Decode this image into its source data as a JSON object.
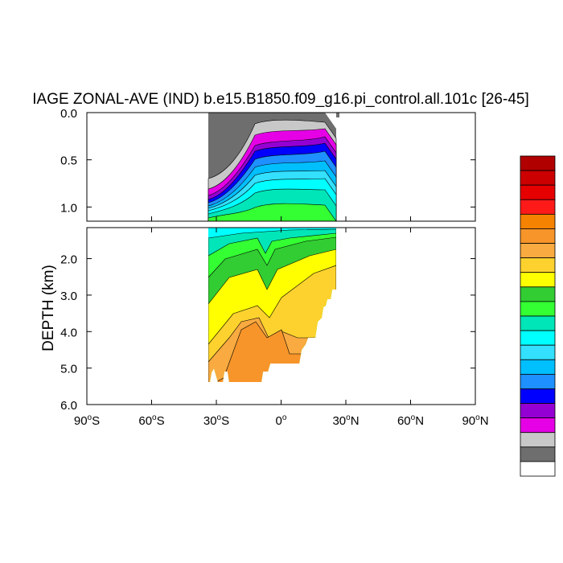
{
  "chart_data": {
    "type": "contour",
    "title": "IAGE ZONAL-AVE (IND) b.e15.B1850.f09_g16.pi_control.all.101c [26-45]",
    "ylabel": "DEPTH (km)",
    "xlabel": "",
    "xlim": [
      -90,
      90
    ],
    "x_ticks": [
      {
        "value": -90,
        "label": "90",
        "suffix": "S"
      },
      {
        "value": -60,
        "label": "60",
        "suffix": "S"
      },
      {
        "value": -30,
        "label": "30",
        "suffix": "S"
      },
      {
        "value": 0,
        "label": "0",
        "suffix": ""
      },
      {
        "value": 30,
        "label": "30",
        "suffix": "N"
      },
      {
        "value": 60,
        "label": "60",
        "suffix": "N"
      },
      {
        "value": 90,
        "label": "90",
        "suffix": "N"
      }
    ],
    "degree_symbol": "o",
    "upper_panel": {
      "depth_range": [
        0,
        1.15
      ],
      "ticks": [
        "0.0",
        "0.5",
        "1.0"
      ],
      "tick_values": [
        0,
        0.5,
        1.0
      ]
    },
    "lower_panel": {
      "depth_range": [
        1.15,
        6.0
      ],
      "ticks": [
        "2.0",
        "3.0",
        "4.0",
        "5.0",
        "6.0"
      ],
      "tick_values": [
        2,
        3,
        4,
        5,
        6
      ]
    },
    "domain_lat_range": [
      -34,
      25
    ],
    "colorbar_colors": [
      "#b00000",
      "#cc0000",
      "#e60000",
      "#ff1a1a",
      "#f58200",
      "#f7952a",
      "#f9aa40",
      "#fdd22e",
      "#ffff00",
      "#32cd32",
      "#33ff33",
      "#00e6b8",
      "#00ffff",
      "#33e0ff",
      "#00bfff",
      "#1e90ff",
      "#0000ff",
      "#9400d3",
      "#e600e6",
      "#c8c8c8",
      "#6e6e6e",
      "#ffffff"
    ],
    "fill_colors": {
      "upper_levels": [
        "#6e6e6e",
        "#c8c8c8",
        "#e600e6",
        "#9400d3",
        "#0000ff",
        "#1e90ff",
        "#00bfff",
        "#33e0ff",
        "#00ffff",
        "#00e6b8",
        "#33ff33"
      ],
      "lower_levels": [
        "#00ffff",
        "#00e6b8",
        "#33ff33",
        "#32cd32",
        "#ffff00",
        "#fdd22e",
        "#f9aa40",
        "#f7952a"
      ]
    }
  }
}
